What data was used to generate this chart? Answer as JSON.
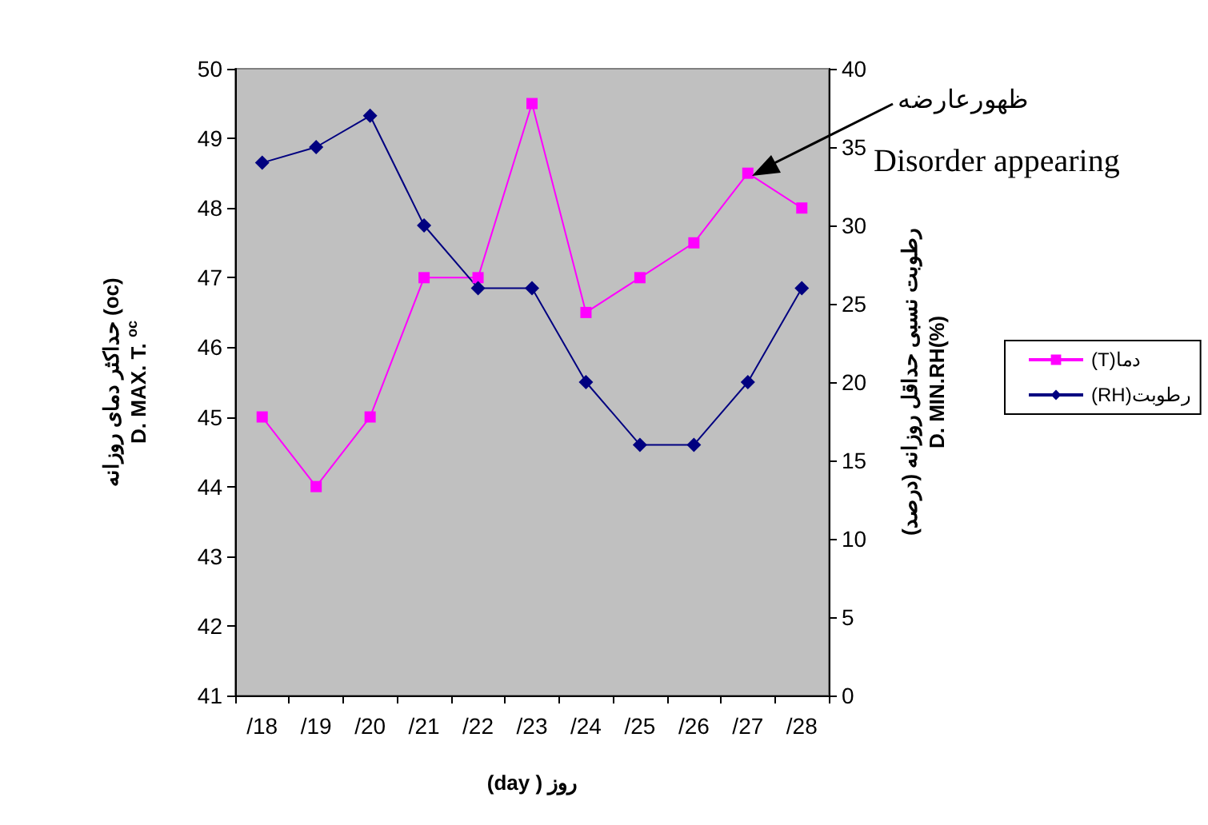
{
  "chart_data": {
    "type": "line",
    "xlabel": "(day ) روز",
    "ylabel": "حداکثر دمای روزانه (oc)\nD. MAX. T. $^{oc}$",
    "y2label": "رطوبت نسبی حداقل روزانه (درصد)\nD. MIN.RH(%)",
    "categories": [
      "/18",
      "/19",
      "/20",
      "/21",
      "/22",
      "/23",
      "/24",
      "/25",
      "/26",
      "/27",
      "/28"
    ],
    "series": [
      {
        "name": "(T)دما",
        "color": "#ff00ff",
        "marker": "square",
        "values": [
          45,
          44,
          45,
          47,
          47,
          49.5,
          46.5,
          47,
          47.5,
          48.5,
          48
        ]
      },
      {
        "name": "(RH)رطوبت",
        "color": "#000080",
        "marker": "diamond",
        "axis": "y2",
        "values": [
          34,
          35,
          37,
          30,
          26,
          26,
          20,
          16,
          16,
          20,
          26
        ]
      }
    ],
    "ylim": [
      41,
      50
    ],
    "yticks": [
      41,
      42,
      43,
      44,
      45,
      46,
      47,
      48,
      49,
      50
    ],
    "y2lim": [
      0,
      40
    ],
    "y2ticks": [
      0,
      5,
      10,
      15,
      20,
      25,
      30,
      35,
      40
    ],
    "grid": false,
    "legend": "right",
    "line_style": "solid",
    "annotations": [
      "ظهورعارضه",
      "Disorder appearing"
    ]
  }
}
